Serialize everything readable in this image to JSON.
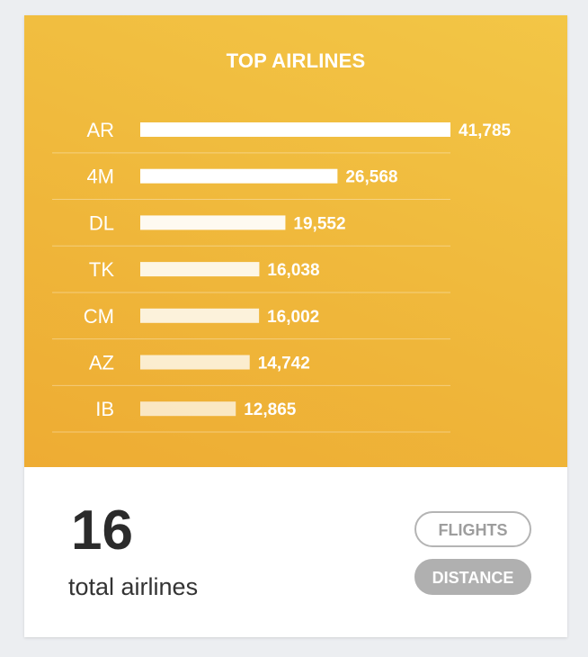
{
  "chart_data": {
    "type": "bar",
    "orientation": "horizontal",
    "title": "TOP AIRLINES",
    "categories": [
      "AR",
      "4M",
      "DL",
      "TK",
      "CM",
      "AZ",
      "IB"
    ],
    "values": [
      41785,
      26568,
      19552,
      16038,
      16002,
      14742,
      12865
    ],
    "value_labels": [
      "41,785",
      "26,568",
      "19,552",
      "16,038",
      "16,002",
      "14,742",
      "12,865"
    ],
    "xlim": [
      0,
      41785
    ],
    "grid": false,
    "legend": "none"
  },
  "summary": {
    "count": "16",
    "label": "total airlines"
  },
  "toggle": {
    "flights_label": "FLIGHTS",
    "distance_label": "DISTANCE",
    "selected": "DISTANCE"
  },
  "colors": {
    "panel": "#f0b93c",
    "bar": "#ffffff",
    "text": "#ffffff",
    "count": "#2b2b2b",
    "button_inactive": "#b4b4b4",
    "button_active": "#b0b0b0"
  }
}
